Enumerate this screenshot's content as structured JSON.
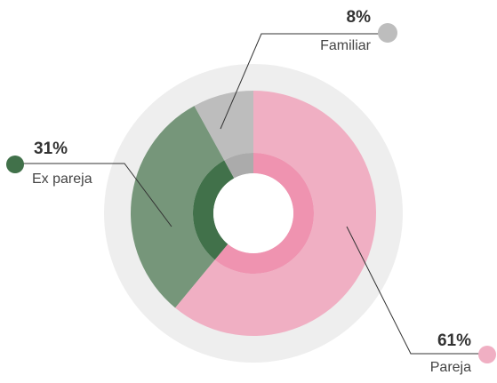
{
  "chart_data": {
    "type": "pie",
    "categories": [
      "Pareja",
      "Ex pareja",
      "Familiar"
    ],
    "values": [
      61,
      31,
      8
    ],
    "value_labels": [
      "61%",
      "31%",
      "8%"
    ],
    "colors": [
      "#f0afc3",
      "#76967a",
      "#bdbdbd"
    ],
    "inner_colors": [
      "#ef93b0",
      "#41714a",
      "#ababab"
    ],
    "ring_color": "#eeeeee"
  }
}
